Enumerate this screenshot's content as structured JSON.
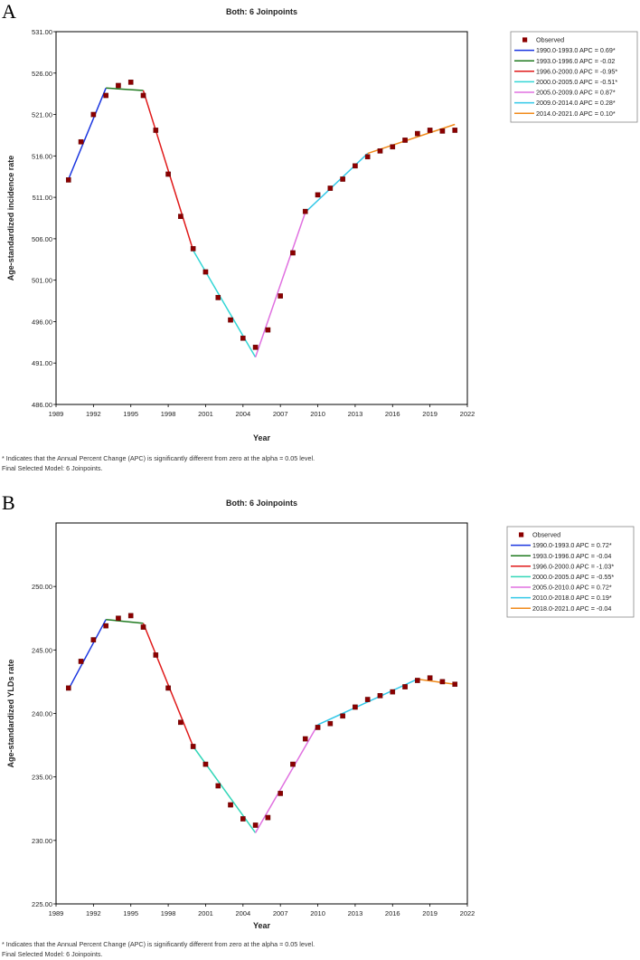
{
  "panels": [
    {
      "letter": "A",
      "footnote": "* Indicates that the Annual Percent Change (APC) is significantly different from zero at the alpha = 0.05 level.",
      "final_model": "Final Selected Model: 6 Joinpoints."
    },
    {
      "letter": "B",
      "footnote": "* Indicates that the Annual Percent Change (APC) is significantly different from zero at the alpha = 0.05 level.",
      "final_model": "Final Selected Model: 6 Joinpoints."
    }
  ],
  "chart_data": [
    {
      "type": "scatter",
      "title": "Both: 6 Joinpoints",
      "xlabel": "Year",
      "ylabel": "Age-standardized incidence rate",
      "xlim": [
        1989,
        2022
      ],
      "ylim": [
        486,
        531
      ],
      "xticks": [
        "1989",
        "1992",
        "1995",
        "1998",
        "2001",
        "2004",
        "2007",
        "2010",
        "2013",
        "2016",
        "2019",
        "2022"
      ],
      "yticks": [
        "486.00",
        "491.00",
        "496.00",
        "501.00",
        "506.00",
        "511.00",
        "516.00",
        "521.00",
        "526.00",
        "531.00"
      ],
      "observed_label": "Observed",
      "observed_color": "#8b0000",
      "observed": {
        "x": [
          1990,
          1991,
          1992,
          1993,
          1994,
          1995,
          1996,
          1997,
          1998,
          1999,
          2000,
          2001,
          2002,
          2003,
          2004,
          2005,
          2006,
          2007,
          2008,
          2009,
          2010,
          2011,
          2012,
          2013,
          2014,
          2015,
          2016,
          2017,
          2018,
          2019,
          2020,
          2021
        ],
        "y": [
          513.1,
          517.7,
          521.0,
          523.3,
          524.5,
          524.9,
          523.3,
          519.1,
          513.8,
          508.7,
          504.8,
          502.0,
          498.9,
          496.2,
          494.0,
          492.9,
          495.0,
          499.1,
          504.3,
          509.3,
          511.3,
          512.1,
          513.2,
          514.8,
          515.9,
          516.6,
          517.1,
          517.9,
          518.7,
          519.1,
          519.0,
          519.1
        ]
      },
      "series": [
        {
          "name": "1990.0-1993.0 APC =  0.69*",
          "color": "#1a35e0",
          "x": [
            1990,
            1993
          ],
          "y": [
            513.2,
            524.2
          ]
        },
        {
          "name": "1993.0-1996.0 APC =  -0.02",
          "color": "#1f7a1f",
          "x": [
            1993,
            1996
          ],
          "y": [
            524.2,
            523.9
          ]
        },
        {
          "name": "1996.0-2000.0 APC =  -0.95*",
          "color": "#e01a1a",
          "x": [
            1996,
            2000
          ],
          "y": [
            523.9,
            504.6
          ]
        },
        {
          "name": "2000.0-2005.0 APC =  -0.51*",
          "color": "#33d6d6",
          "x": [
            2000,
            2005
          ],
          "y": [
            504.6,
            491.7
          ]
        },
        {
          "name": "2005.0-2009.0 APC =  0.87*",
          "color": "#e070e0",
          "x": [
            2005,
            2009
          ],
          "y": [
            491.7,
            509.2
          ]
        },
        {
          "name": "2009.0-2014.0 APC =  0.28*",
          "color": "#33c8e8",
          "x": [
            2009,
            2014
          ],
          "y": [
            509.2,
            516.3
          ]
        },
        {
          "name": "2014.0-2021.0 APC =  0.10*",
          "color": "#f08a1a",
          "x": [
            2014,
            2021
          ],
          "y": [
            516.3,
            519.8
          ]
        }
      ]
    },
    {
      "type": "scatter",
      "title": "Both: 6 Joinpoints",
      "xlabel": "Year",
      "ylabel": "Age-standardized YLDs rate",
      "xlim": [
        1989,
        2022
      ],
      "ylim": [
        225,
        255
      ],
      "xticks": [
        "1989",
        "1992",
        "1995",
        "1998",
        "2001",
        "2004",
        "2007",
        "2010",
        "2013",
        "2016",
        "2019",
        "2022"
      ],
      "yticks": [
        "225.00",
        "230.00",
        "235.00",
        "240.00",
        "245.00",
        "250.00"
      ],
      "observed_label": "Observed",
      "observed_color": "#8b0000",
      "observed": {
        "x": [
          1990,
          1991,
          1992,
          1993,
          1994,
          1995,
          1996,
          1997,
          1998,
          1999,
          2000,
          2001,
          2002,
          2003,
          2004,
          2005,
          2006,
          2007,
          2008,
          2009,
          2010,
          2011,
          2012,
          2013,
          2014,
          2015,
          2016,
          2017,
          2018,
          2019,
          2020,
          2021
        ],
        "y": [
          242.0,
          244.1,
          245.8,
          246.9,
          247.5,
          247.7,
          246.8,
          244.6,
          242.0,
          239.3,
          237.4,
          236.0,
          234.3,
          232.8,
          231.7,
          231.2,
          231.8,
          233.7,
          236.0,
          238.0,
          238.9,
          239.2,
          239.8,
          240.5,
          241.1,
          241.4,
          241.7,
          242.1,
          242.6,
          242.8,
          242.5,
          242.3
        ]
      },
      "series": [
        {
          "name": "1990.0-1993.0 APC =  0.72*",
          "color": "#1a35e0",
          "x": [
            1990,
            1993
          ],
          "y": [
            241.9,
            247.4
          ]
        },
        {
          "name": "1993.0-1996.0 APC =  -0.04",
          "color": "#1f7a1f",
          "x": [
            1993,
            1996
          ],
          "y": [
            247.4,
            247.1
          ]
        },
        {
          "name": "1996.0-2000.0 APC =  -1.03*",
          "color": "#e01a1a",
          "x": [
            1996,
            2000
          ],
          "y": [
            247.1,
            237.4
          ]
        },
        {
          "name": "2000.0-2005.0 APC =  -0.55*",
          "color": "#33d6b8",
          "x": [
            2000,
            2005
          ],
          "y": [
            237.4,
            230.6
          ]
        },
        {
          "name": "2005.0-2010.0 APC =  0.72*",
          "color": "#e070e0",
          "x": [
            2005,
            2010
          ],
          "y": [
            230.6,
            239.1
          ]
        },
        {
          "name": "2010.0-2018.0 APC =  0.19*",
          "color": "#33c8e8",
          "x": [
            2010,
            2018
          ],
          "y": [
            239.1,
            242.7
          ]
        },
        {
          "name": "2018.0-2021.0 APC =  -0.04",
          "color": "#f08a1a",
          "x": [
            2018,
            2021
          ],
          "y": [
            242.7,
            242.3
          ]
        }
      ]
    }
  ]
}
